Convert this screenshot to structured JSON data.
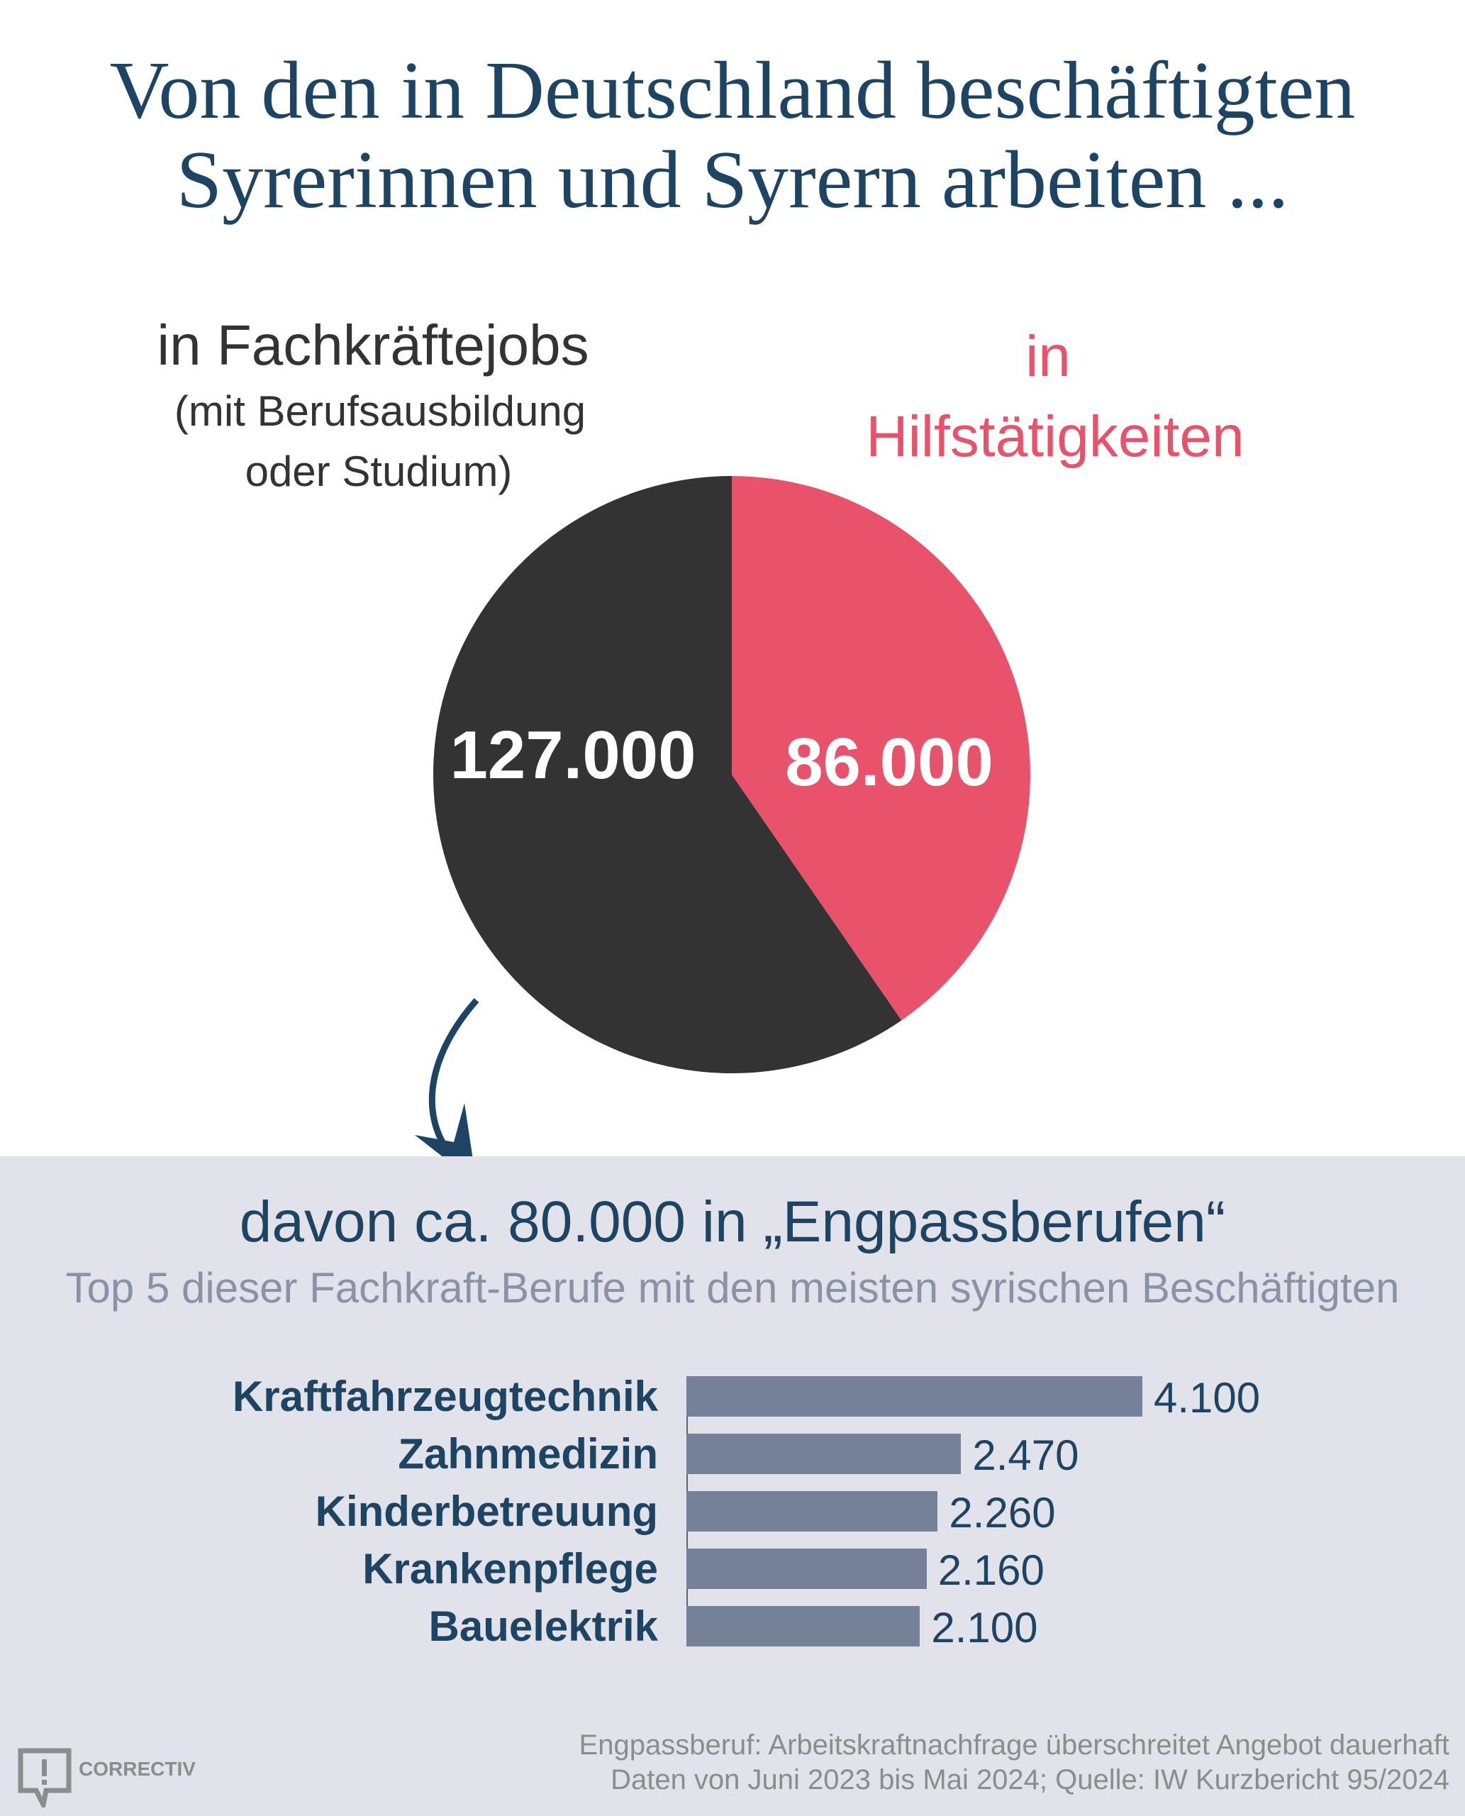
{
  "title": {
    "line1": "Von den in Deutschland beschäftigten",
    "line2": "Syrerinnen und Syrern arbeiten ..."
  },
  "colors": {
    "title": "#1d4462",
    "skilled": "#333333",
    "helper": "#e8526a",
    "bar": "#758199",
    "panel": "#e1e2ea"
  },
  "chart_data": [
    {
      "type": "pie",
      "slices": [
        {
          "name": "in Fachkräftejobs (mit Berufsausbildung oder Studium)",
          "value": 127000,
          "label": "127.000",
          "color": "#333333"
        },
        {
          "name": "in Hilfstätigkeiten",
          "value": 86000,
          "label": "86.000",
          "color": "#e8526a"
        }
      ],
      "labels": {
        "skilled_title": "in Fachkräftejobs",
        "skilled_sub1": "(mit Berufsausbildung",
        "skilled_sub2": "oder Studium)",
        "helper_line1": "in",
        "helper_line2": "Hilfstätigkeiten"
      }
    },
    {
      "type": "bar",
      "title": "davon ca. 80.000 in „Engpassberufen“",
      "subtitle": "Top 5 dieser Fachkraft-Berufe mit den meisten syrischen Beschäftigten",
      "orientation": "horizontal",
      "categories": [
        "Kraftfahrzeugtechnik",
        "Zahnmedizin",
        "Kinderbetreuung",
        "Krankenpflege",
        "Bauelektrik"
      ],
      "values": [
        4100,
        2470,
        2260,
        2160,
        2100
      ],
      "value_labels": [
        "4.100",
        "2.470",
        "2.260",
        "2.160",
        "2.100"
      ],
      "xlim": [
        0,
        4100
      ]
    }
  ],
  "footer": {
    "line1": "Engpassberuf: Arbeitskraftnachfrage überschreitet Angebot dauerhaft",
    "line2": "Daten von Juni 2023 bis Mai 2024; Quelle: IW Kurzbericht 95/2024",
    "logo": "CORRECTIV"
  }
}
